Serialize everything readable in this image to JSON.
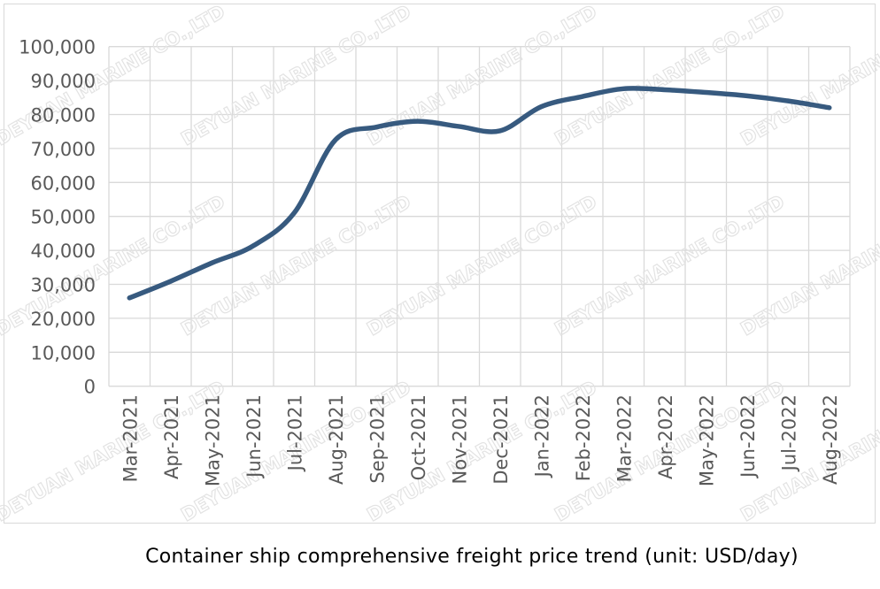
{
  "chart_data": {
    "type": "line",
    "title": "",
    "xlabel": "",
    "ylabel": "",
    "categories": [
      "Mar-2021",
      "Apr-2021",
      "May-2021",
      "Jun-2021",
      "Jul-2021",
      "Aug-2021",
      "Sep-2021",
      "Oct-2021",
      "Nov-2021",
      "Dec-2021",
      "Jan-2022",
      "Feb-2022",
      "Mar-2022",
      "Apr-2022",
      "May-2022",
      "Jun-2022",
      "Jul-2022",
      "Aug-2022"
    ],
    "values": [
      26000,
      30900,
      36300,
      41300,
      51000,
      72500,
      76300,
      78000,
      76500,
      75200,
      82300,
      85300,
      87600,
      87300,
      86500,
      85500,
      84000,
      82000
    ],
    "ylim": [
      0,
      100000
    ],
    "yticks": [
      "0",
      "10,000",
      "20,000",
      "30,000",
      "40,000",
      "50,000",
      "60,000",
      "70,000",
      "80,000",
      "90,000",
      "100,000"
    ],
    "grid": true,
    "smooth": true,
    "line_color": "#375a7f",
    "grid_color": "#d9d9d9"
  },
  "caption": "Container ship comprehensive freight price trend (unit: USD/day)",
  "watermark": "DEYUAN MARINE CO.,LTD"
}
